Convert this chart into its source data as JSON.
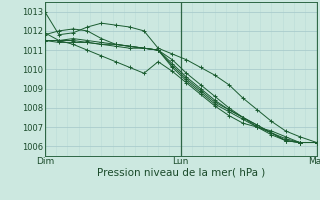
{
  "xlabel": "Pression niveau de la mer( hPa )",
  "bg_color": "#cce8e0",
  "grid_major_color": "#aacccc",
  "grid_minor_color": "#bbddd8",
  "line_color": "#1a5c30",
  "xlim": [
    0,
    48
  ],
  "ylim": [
    1005.5,
    1013.5
  ],
  "yticks": [
    1006,
    1007,
    1008,
    1009,
    1010,
    1011,
    1012,
    1013
  ],
  "xtick_positions": [
    0,
    24,
    48
  ],
  "xtick_labels": [
    "Dim",
    "Lun",
    "Mar"
  ],
  "series": [
    [
      1013.0,
      1011.8,
      1011.9,
      1012.2,
      1012.4,
      1012.3,
      1012.2,
      1012.0,
      1011.1,
      1010.8,
      1010.5,
      1010.1,
      1009.7,
      1009.2,
      1008.5,
      1007.9,
      1007.3,
      1006.8,
      1006.5,
      1006.2
    ],
    [
      1011.8,
      1012.0,
      1012.1,
      1012.0,
      1011.6,
      1011.3,
      1011.2,
      1011.1,
      1011.0,
      1010.5,
      1009.8,
      1009.2,
      1008.6,
      1008.0,
      1007.5,
      1007.0,
      1006.6,
      1006.3,
      1006.2,
      1006.2
    ],
    [
      1011.5,
      1011.5,
      1011.6,
      1011.5,
      1011.4,
      1011.3,
      1011.2,
      1011.1,
      1011.0,
      1010.3,
      1009.6,
      1009.0,
      1008.4,
      1007.9,
      1007.5,
      1007.1,
      1006.7,
      1006.3,
      1006.2,
      1006.2
    ],
    [
      1011.5,
      1011.5,
      1011.5,
      1011.4,
      1011.3,
      1011.3,
      1011.2,
      1011.1,
      1011.0,
      1010.2,
      1009.5,
      1008.9,
      1008.3,
      1007.9,
      1007.5,
      1007.1,
      1006.7,
      1006.3,
      1006.2,
      1006.2
    ],
    [
      1011.5,
      1011.4,
      1011.4,
      1011.4,
      1011.3,
      1011.2,
      1011.1,
      1011.1,
      1011.0,
      1010.1,
      1009.4,
      1008.8,
      1008.2,
      1007.8,
      1007.4,
      1007.0,
      1006.7,
      1006.4,
      1006.2,
      1006.2
    ],
    [
      1011.9,
      1011.5,
      1011.3,
      1011.0,
      1010.7,
      1010.4,
      1010.1,
      1009.8,
      1010.4,
      1009.9,
      1009.3,
      1008.7,
      1008.1,
      1007.6,
      1007.2,
      1007.0,
      1006.8,
      1006.5,
      1006.2,
      1006.2
    ]
  ],
  "x_points": [
    0,
    2.5,
    5,
    7.5,
    10,
    12.5,
    15,
    17.5,
    20,
    22.5,
    25,
    27.5,
    30,
    32.5,
    35,
    37.5,
    40,
    42.5,
    45,
    48
  ]
}
